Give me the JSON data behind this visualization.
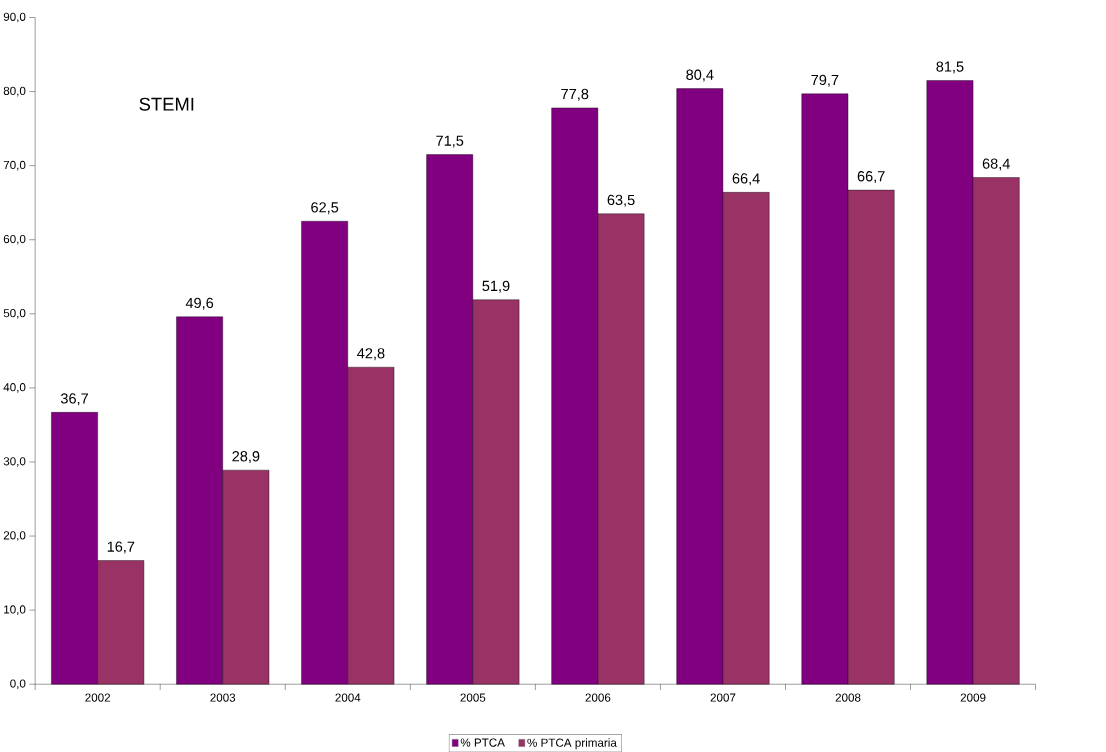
{
  "chart_data": {
    "type": "bar",
    "title": "STEMI",
    "categories": [
      "2002",
      "2003",
      "2004",
      "2005",
      "2006",
      "2007",
      "2008",
      "2009"
    ],
    "series": [
      {
        "name": "% PTCA",
        "color": "#800080",
        "values": [
          36.7,
          49.6,
          62.5,
          71.5,
          77.8,
          80.4,
          79.7,
          81.5
        ],
        "value_labels": [
          "36,7",
          "49,6",
          "62,5",
          "71,5",
          "77,8",
          "80,4",
          "79,7",
          "81,5"
        ]
      },
      {
        "name": "% PTCA primaria",
        "color": "#993366",
        "values": [
          16.7,
          28.9,
          42.8,
          51.9,
          63.5,
          66.4,
          66.7,
          68.4
        ],
        "value_labels": [
          "16,7",
          "28,9",
          "42,8",
          "51,9",
          "63,5",
          "66,4",
          "66,7",
          "68,4"
        ]
      }
    ],
    "ylim": [
      0,
      90
    ],
    "yticks": [
      {
        "value": 0,
        "label": "0,0"
      },
      {
        "value": 10,
        "label": "10,0"
      },
      {
        "value": 20,
        "label": "20,0"
      },
      {
        "value": 30,
        "label": "30,0"
      },
      {
        "value": 40,
        "label": "40,0"
      },
      {
        "value": 50,
        "label": "50,0"
      },
      {
        "value": 60,
        "label": "60,0"
      },
      {
        "value": 70,
        "label": "70,0"
      },
      {
        "value": 80,
        "label": "80,0"
      },
      {
        "value": 90,
        "label": "90,0"
      }
    ],
    "grid": false,
    "legend": "bottom"
  }
}
